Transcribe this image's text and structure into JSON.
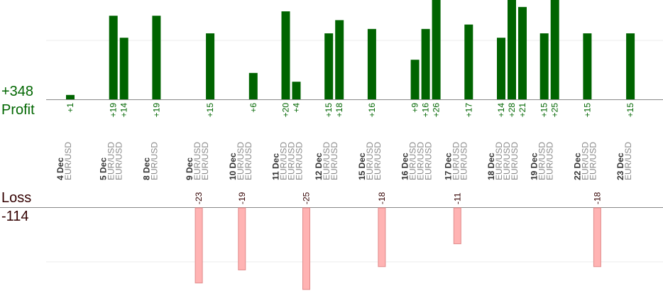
{
  "colors": {
    "profit_bar": "#006400",
    "profit_text": "#006600",
    "loss_bar": "#ffb3b3",
    "loss_bar_edge": "#e08a8a",
    "loss_text": "#330000",
    "axis": "#888888",
    "grid": "#eeeeee",
    "symbol_text": "#888888",
    "date_text": "#333333"
  },
  "summary": {
    "total_profit": "+348",
    "profit_label": "Profit",
    "loss_label": "Loss",
    "total_loss": "-114"
  },
  "chart_data": {
    "type": "bar",
    "grid": true,
    "profit_axis_range": [
      0,
      20
    ],
    "loss_axis_range": [
      -25,
      0
    ],
    "dates": [
      {
        "date": "4 Dec",
        "symbols": [
          "EUR/USD"
        ]
      },
      {
        "date": "5 Dec",
        "symbols": [
          "EUR/USD",
          "EUR/USD"
        ]
      },
      {
        "date": "8 Dec",
        "symbols": [
          "EUR/USD"
        ]
      },
      {
        "date": "9 Dec",
        "symbols": [
          "EUR/USD",
          "EUR/USD"
        ]
      },
      {
        "date": "10 Dec",
        "symbols": [
          "EUR/USD",
          "EUR/USD"
        ]
      },
      {
        "date": "11 Dec",
        "symbols": [
          "EUR/USD",
          "EUR/USD",
          "EUR/USD"
        ]
      },
      {
        "date": "12 Dec",
        "symbols": [
          "EUR/USD",
          "EUR/USD"
        ]
      },
      {
        "date": "15 Dec",
        "symbols": [
          "EUR/USD",
          "EUR/USD"
        ]
      },
      {
        "date": "16 Dec",
        "symbols": [
          "EUR/USD",
          "EUR/USD",
          "EUR/USD"
        ]
      },
      {
        "date": "17 Dec",
        "symbols": [
          "EUR/USD",
          "EUR/USD"
        ]
      },
      {
        "date": "18 Dec",
        "symbols": [
          "EUR/USD",
          "EUR/USD",
          "EUR/USD"
        ]
      },
      {
        "date": "19 Dec",
        "symbols": [
          "EUR/USD",
          "EUR/USD"
        ]
      },
      {
        "date": "22 Dec",
        "symbols": [
          "EUR/USD",
          "EUR/USD"
        ]
      },
      {
        "date": "23 Dec",
        "symbols": [
          "EUR/USD"
        ]
      }
    ],
    "trades": [
      {
        "date_index": 0,
        "slot": 0,
        "value": 1,
        "label": "+1"
      },
      {
        "date_index": 1,
        "slot": 0,
        "value": 19,
        "label": "+19"
      },
      {
        "date_index": 1,
        "slot": 1,
        "value": 14,
        "label": "+14"
      },
      {
        "date_index": 2,
        "slot": 0,
        "value": 19,
        "label": "+19"
      },
      {
        "date_index": 3,
        "slot": 0,
        "value": -23,
        "label": "-23"
      },
      {
        "date_index": 3,
        "slot": 1,
        "value": 15,
        "label": "+15"
      },
      {
        "date_index": 4,
        "slot": 0,
        "value": -19,
        "label": "-19"
      },
      {
        "date_index": 4,
        "slot": 1,
        "value": 6,
        "label": "+6"
      },
      {
        "date_index": 5,
        "slot": 0,
        "value": 20,
        "label": "+20"
      },
      {
        "date_index": 5,
        "slot": 1,
        "value": 4,
        "label": "+4"
      },
      {
        "date_index": 5,
        "slot": 2,
        "value": -25,
        "label": "-25"
      },
      {
        "date_index": 6,
        "slot": 0,
        "value": 15,
        "label": "+15"
      },
      {
        "date_index": 6,
        "slot": 1,
        "value": 18,
        "label": "+18"
      },
      {
        "date_index": 7,
        "slot": 0,
        "value": 16,
        "label": "+16"
      },
      {
        "date_index": 7,
        "slot": 1,
        "value": -18,
        "label": "-18"
      },
      {
        "date_index": 8,
        "slot": 0,
        "value": 9,
        "label": "+9"
      },
      {
        "date_index": 8,
        "slot": 1,
        "value": 16,
        "label": "+16"
      },
      {
        "date_index": 8,
        "slot": 2,
        "value": 26,
        "label": "+26"
      },
      {
        "date_index": 9,
        "slot": 0,
        "value": -11,
        "label": "-11"
      },
      {
        "date_index": 9,
        "slot": 1,
        "value": 17,
        "label": "+17"
      },
      {
        "date_index": 10,
        "slot": 0,
        "value": 14,
        "label": "+14"
      },
      {
        "date_index": 10,
        "slot": 1,
        "value": 28,
        "label": "+28"
      },
      {
        "date_index": 10,
        "slot": 2,
        "value": 21,
        "label": "+21"
      },
      {
        "date_index": 11,
        "slot": 0,
        "value": 15,
        "label": "+15"
      },
      {
        "date_index": 11,
        "slot": 1,
        "value": 25,
        "label": "+25"
      },
      {
        "date_index": 12,
        "slot": 0,
        "value": 15,
        "label": "+15"
      },
      {
        "date_index": 12,
        "slot": 1,
        "value": -18,
        "label": "-18"
      },
      {
        "date_index": 13,
        "slot": 0,
        "value": 15,
        "label": "+15"
      }
    ]
  }
}
